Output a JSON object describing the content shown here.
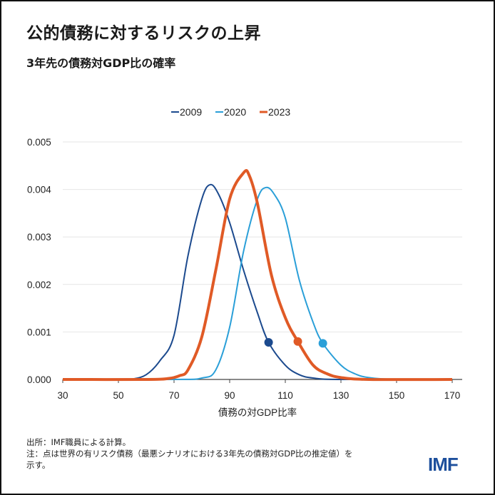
{
  "title": "公的債務に対するリスクの上昇",
  "subtitle": "3年先の債務対GDP比の確率",
  "footer": {
    "source": "出所：IMF職員による計算。",
    "note_line1": "注：点は世界の有リスク債務（最悪シナリオにおける3年先の債務対GDP比の推定値）を",
    "note_line2": "示す。",
    "logo": "IMF"
  },
  "chart_data": {
    "type": "line",
    "title": "3年先の債務対GDP比の確率",
    "xlabel": "債務の対GDP比率",
    "ylabel": "",
    "xlim": [
      30,
      170
    ],
    "ylim": [
      0,
      0.005
    ],
    "x_ticks": [
      "30",
      "50",
      "70",
      "90",
      "110",
      "130",
      "150",
      "170"
    ],
    "y_ticks": [
      "0.000",
      "0.001",
      "0.002",
      "0.003",
      "0.004",
      "0.005"
    ],
    "grid": "horizontal",
    "legend": "top-center",
    "series": [
      {
        "name": "2009",
        "color": "#1c4a8e",
        "points": [
          [
            30,
            0
          ],
          [
            50,
            0
          ],
          [
            55,
            1e-05
          ],
          [
            60,
            0.0001
          ],
          [
            65,
            0.0004
          ],
          [
            70,
            0.00093
          ],
          [
            75,
            0.0026
          ],
          [
            80,
            0.0038
          ],
          [
            83,
            0.0041
          ],
          [
            86,
            0.0039
          ],
          [
            90,
            0.0033
          ],
          [
            95,
            0.0023
          ],
          [
            100,
            0.0014
          ],
          [
            104,
            0.00078
          ],
          [
            110,
            0.0003
          ],
          [
            115,
            0.0001
          ],
          [
            120,
            3e-05
          ],
          [
            130,
            0
          ],
          [
            170,
            0
          ]
        ],
        "marker": [
          104,
          0.00078
        ]
      },
      {
        "name": "2020",
        "color": "#2a9fd8",
        "points": [
          [
            30,
            0
          ],
          [
            70,
            0
          ],
          [
            80,
            3e-05
          ],
          [
            85,
            0.0002
          ],
          [
            90,
            0.0011
          ],
          [
            95,
            0.0027
          ],
          [
            100,
            0.0038
          ],
          [
            103,
            0.00404
          ],
          [
            106,
            0.0039
          ],
          [
            110,
            0.0034
          ],
          [
            115,
            0.0021
          ],
          [
            120,
            0.0012
          ],
          [
            123.5,
            0.00076
          ],
          [
            130,
            0.0003
          ],
          [
            135,
            0.00012
          ],
          [
            140,
            4e-05
          ],
          [
            150,
            0
          ],
          [
            170,
            0
          ]
        ],
        "marker": [
          123.5,
          0.00076
        ]
      },
      {
        "name": "2023",
        "color": "#e05a26",
        "points": [
          [
            30,
            0
          ],
          [
            60,
            0
          ],
          [
            68,
            2e-05
          ],
          [
            72,
            8e-05
          ],
          [
            75,
            0.0002
          ],
          [
            80,
            0.0009
          ],
          [
            85,
            0.0023
          ],
          [
            90,
            0.0038
          ],
          [
            95,
            0.00435
          ],
          [
            97,
            0.0043
          ],
          [
            100,
            0.0037
          ],
          [
            105,
            0.0022
          ],
          [
            110,
            0.0013
          ],
          [
            114.5,
            0.0008
          ],
          [
            120,
            0.0003
          ],
          [
            125,
            0.00012
          ],
          [
            130,
            4e-05
          ],
          [
            140,
            0
          ],
          [
            170,
            0
          ]
        ],
        "marker": [
          114.5,
          0.0008
        ]
      }
    ]
  }
}
